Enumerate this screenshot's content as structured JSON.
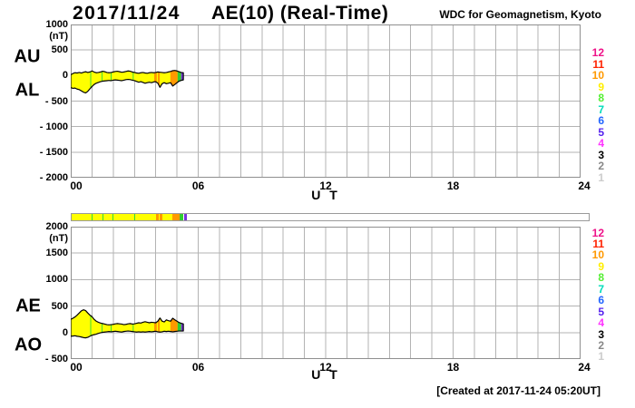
{
  "header": {
    "date": "2017/11/24",
    "title": "AE(10) (Real-Time)",
    "organization": "WDC for Geomagnetism, Kyoto"
  },
  "footer": {
    "created_text": "[Created at 2017-11-24 05:20UT]"
  },
  "x_axis": {
    "label": "U T",
    "ticks": [
      "00",
      "06",
      "12",
      "18",
      "24"
    ]
  },
  "station_legend": [
    {
      "count": "12",
      "color": "#ee1188"
    },
    {
      "count": "11",
      "color": "#ff2200"
    },
    {
      "count": "10",
      "color": "#ff9900"
    },
    {
      "count": "9",
      "color": "#ffee00"
    },
    {
      "count": "8",
      "color": "#55ee33"
    },
    {
      "count": "7",
      "color": "#00ddbb"
    },
    {
      "count": "6",
      "color": "#2266ff"
    },
    {
      "count": "5",
      "color": "#5522ee"
    },
    {
      "count": "4",
      "color": "#ff33ff"
    },
    {
      "count": "3",
      "color": "#000000"
    },
    {
      "count": "2",
      "color": "#888888"
    },
    {
      "count": "1",
      "color": "#cccccc"
    }
  ],
  "station_bar": {
    "segments": [
      {
        "from": 0.0,
        "to": 0.92,
        "color": "#ffff00"
      },
      {
        "from": 0.92,
        "to": 0.96,
        "color": "#33dd33"
      },
      {
        "from": 0.96,
        "to": 1.45,
        "color": "#ffff00"
      },
      {
        "from": 1.45,
        "to": 1.49,
        "color": "#33dd33"
      },
      {
        "from": 1.49,
        "to": 1.88,
        "color": "#ffff00"
      },
      {
        "from": 1.88,
        "to": 1.92,
        "color": "#33dd33"
      },
      {
        "from": 1.92,
        "to": 2.92,
        "color": "#ffff00"
      },
      {
        "from": 2.92,
        "to": 2.96,
        "color": "#33dd33"
      },
      {
        "from": 2.96,
        "to": 3.93,
        "color": "#ffff00"
      },
      {
        "from": 3.93,
        "to": 4.05,
        "color": "#ff9900"
      },
      {
        "from": 4.05,
        "to": 4.1,
        "color": "#ffff00"
      },
      {
        "from": 4.1,
        "to": 4.19,
        "color": "#ff9900"
      },
      {
        "from": 4.19,
        "to": 4.69,
        "color": "#ffff00"
      },
      {
        "from": 4.69,
        "to": 5.03,
        "color": "#ff9900"
      },
      {
        "from": 5.03,
        "to": 5.2,
        "color": "#33cc33"
      },
      {
        "from": 5.2,
        "to": 5.33,
        "color": "#7733dd"
      }
    ]
  },
  "charts": [
    {
      "left_labels": [
        "AU",
        "AL"
      ],
      "unit": "(nT)",
      "y_tick_labels": [
        "1000",
        "500",
        "0",
        "- 500",
        "- 1000",
        "- 1500",
        "- 2000"
      ]
    },
    {
      "left_labels": [
        "AE",
        "AO"
      ],
      "unit": "(nT)",
      "y_tick_labels": [
        "2000",
        "1500",
        "1000",
        "500",
        "0",
        "- 500"
      ]
    }
  ],
  "chart_data": [
    {
      "type": "area",
      "title": "AE(10) (Real-Time) 2017/11/24 — AU / AL envelopes",
      "xlabel": "U T",
      "ylabel": "nT",
      "xlim": [
        0,
        24
      ],
      "ylim": [
        -2000,
        1000
      ],
      "x_tick_values": [
        0,
        6,
        12,
        18,
        24
      ],
      "y_tick_values": [
        1000,
        500,
        0,
        -500,
        -1000,
        -1500,
        -2000
      ],
      "band_fill": "#ffff00",
      "x_hours": [
        0.0,
        0.1,
        0.2,
        0.3,
        0.4,
        0.5,
        0.6,
        0.7,
        0.8,
        0.9,
        1.0,
        1.1,
        1.2,
        1.3,
        1.4,
        1.5,
        1.6,
        1.7,
        1.8,
        1.9,
        2.0,
        2.1,
        2.2,
        2.3,
        2.4,
        2.5,
        2.6,
        2.7,
        2.8,
        2.9,
        3.0,
        3.1,
        3.2,
        3.3,
        3.4,
        3.5,
        3.6,
        3.7,
        3.8,
        3.9,
        4.0,
        4.1,
        4.2,
        4.3,
        4.4,
        4.5,
        4.6,
        4.7,
        4.8,
        4.9,
        5.0,
        5.1,
        5.2,
        5.3
      ],
      "series": [
        {
          "name": "AU",
          "values": [
            15,
            40,
            55,
            50,
            60,
            50,
            65,
            75,
            60,
            70,
            90,
            70,
            55,
            60,
            70,
            85,
            75,
            60,
            55,
            60,
            70,
            80,
            85,
            75,
            65,
            70,
            80,
            90,
            85,
            70,
            60,
            50,
            45,
            55,
            60,
            50,
            45,
            55,
            60,
            55,
            60,
            70,
            65,
            60,
            55,
            60,
            70,
            80,
            95,
            100,
            90,
            75,
            60,
            55
          ]
        },
        {
          "name": "AL",
          "values": [
            -235,
            -250,
            -245,
            -265,
            -275,
            -300,
            -325,
            -340,
            -310,
            -260,
            -215,
            -175,
            -150,
            -135,
            -120,
            -110,
            -105,
            -100,
            -95,
            -100,
            -90,
            -85,
            -90,
            -95,
            -100,
            -90,
            -80,
            -75,
            -80,
            -90,
            -100,
            -115,
            -130,
            -120,
            -135,
            -150,
            -140,
            -130,
            -140,
            -125,
            -120,
            -150,
            -230,
            -160,
            -140,
            -160,
            -150,
            -140,
            -205,
            -175,
            -140,
            -110,
            -95,
            -85
          ]
        }
      ]
    },
    {
      "type": "area",
      "title": "AE(10) (Real-Time) 2017/11/24 — AE / AO envelopes",
      "xlabel": "U T",
      "ylabel": "nT",
      "xlim": [
        0,
        24
      ],
      "ylim": [
        -500,
        2000
      ],
      "x_tick_values": [
        0,
        6,
        12,
        18,
        24
      ],
      "y_tick_values": [
        2000,
        1500,
        1000,
        500,
        0,
        -500
      ],
      "band_fill": "#ffff00",
      "x_hours": [
        0.0,
        0.1,
        0.2,
        0.3,
        0.4,
        0.5,
        0.6,
        0.7,
        0.8,
        0.9,
        1.0,
        1.1,
        1.2,
        1.3,
        1.4,
        1.5,
        1.6,
        1.7,
        1.8,
        1.9,
        2.0,
        2.1,
        2.2,
        2.3,
        2.4,
        2.5,
        2.6,
        2.7,
        2.8,
        2.9,
        3.0,
        3.1,
        3.2,
        3.3,
        3.4,
        3.5,
        3.6,
        3.7,
        3.8,
        3.9,
        4.0,
        4.1,
        4.2,
        4.3,
        4.4,
        4.5,
        4.6,
        4.7,
        4.8,
        4.9,
        5.0,
        5.1,
        5.2,
        5.3
      ],
      "series": [
        {
          "name": "AE",
          "values": [
            250,
            270,
            295,
            330,
            370,
            410,
            430,
            415,
            370,
            330,
            300,
            250,
            215,
            195,
            180,
            170,
            160,
            150,
            145,
            150,
            155,
            165,
            170,
            165,
            160,
            150,
            155,
            165,
            170,
            160,
            165,
            175,
            185,
            180,
            195,
            205,
            195,
            185,
            195,
            190,
            185,
            215,
            275,
            215,
            200,
            240,
            225,
            215,
            270,
            240,
            215,
            190,
            175,
            165
          ]
        },
        {
          "name": "AO",
          "values": [
            -70,
            -65,
            -60,
            -70,
            -75,
            -85,
            -95,
            -100,
            -90,
            -70,
            -50,
            -40,
            -30,
            -15,
            -5,
            5,
            10,
            15,
            20,
            15,
            20,
            25,
            20,
            15,
            10,
            20,
            25,
            30,
            25,
            20,
            15,
            10,
            15,
            10,
            15,
            10,
            15,
            20,
            15,
            20,
            25,
            15,
            10,
            15,
            25,
            20,
            25,
            20,
            15,
            20,
            25,
            30,
            30,
            30
          ]
        }
      ]
    }
  ]
}
